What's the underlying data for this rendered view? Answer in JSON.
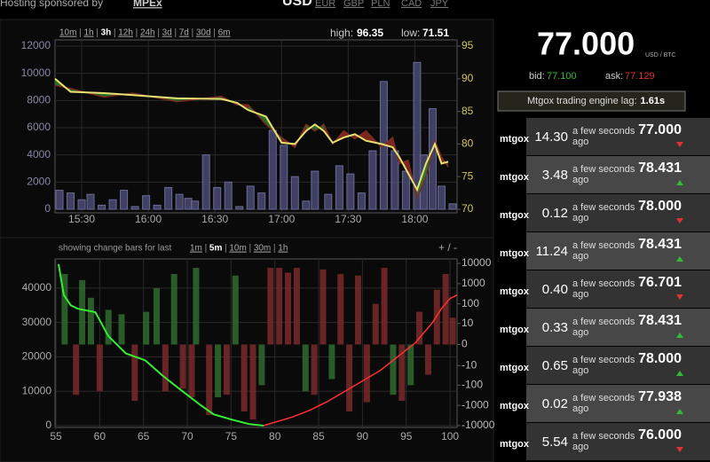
{
  "header": {
    "sponsor_text": "Hosting sponsored by",
    "sponsor": "MPEx",
    "currencies": [
      "USD",
      "EUR",
      "GBP",
      "PLN",
      "CAD",
      "JPY"
    ],
    "active_currency": 0
  },
  "chart_data": [
    {
      "type": "bar_line",
      "ranges": [
        "10m",
        "1h",
        "3h",
        "12h",
        "24h",
        "3d",
        "7d",
        "30d",
        "6m"
      ],
      "active_range": 2,
      "high_label": "high:",
      "high": 96.35,
      "low_label": "low:",
      "low": 71.51,
      "xlim": [
        18,
        199
      ],
      "xticks": [
        {
          "value": 30,
          "label": "15:30"
        },
        {
          "value": 60,
          "label": "16:00"
        },
        {
          "value": 90,
          "label": "16:30"
        },
        {
          "value": 120,
          "label": "17:00"
        },
        {
          "value": 150,
          "label": "17:30"
        },
        {
          "value": 180,
          "label": "18:00"
        }
      ],
      "ylim": [
        0,
        12000
      ],
      "yticks": [
        0,
        2000,
        4000,
        6000,
        8000,
        10000,
        12000
      ],
      "y2lim": [
        70,
        95
      ],
      "y2ticks": [
        70,
        75,
        80,
        85,
        90,
        95
      ],
      "grid": true,
      "bars": [
        {
          "color": "#4a4a72",
          "x": [
            20,
            25,
            30,
            34,
            39,
            44,
            49,
            54,
            59,
            64,
            69,
            74,
            78,
            81,
            86,
            91,
            96,
            101,
            106,
            111,
            116,
            121,
            126,
            131,
            135,
            141,
            146,
            151,
            156,
            161,
            166,
            171,
            176,
            181,
            184,
            188,
            192,
            197
          ],
          "values": [
            1400,
            1200,
            700,
            1100,
            300,
            700,
            1400,
            200,
            1000,
            300,
            1600,
            1100,
            800,
            600,
            4000,
            1600,
            2000,
            200,
            1700,
            1200,
            5800,
            4700,
            2400,
            600,
            2800,
            1100,
            3200,
            2600,
            1200,
            4300,
            9400,
            4300,
            2800,
            10800,
            4000,
            7400,
            1700,
            400
          ]
        }
      ],
      "series": [
        {
          "color": "#e8e070",
          "axis": "y2",
          "x": [
            18,
            25,
            40,
            53,
            73,
            93,
            100,
            105,
            113,
            120,
            126,
            131,
            135,
            139,
            143,
            148,
            153,
            158,
            165,
            170,
            173,
            177,
            181,
            185,
            189,
            192,
            195
          ],
          "values": [
            90,
            88,
            87.8,
            87.5,
            87,
            86.9,
            86.3,
            85.2,
            84.2,
            80.2,
            80,
            82,
            83,
            82,
            80.2,
            81,
            81.5,
            80.5,
            80,
            79.5,
            78,
            75.5,
            73,
            77,
            80,
            77,
            77.3
          ]
        },
        {
          "color": "#7a2a20",
          "axis": "y2",
          "x": [
            18,
            25,
            40,
            53,
            73,
            93,
            100,
            105,
            113,
            120,
            126,
            131,
            135,
            139,
            143,
            148,
            153,
            158,
            165,
            170,
            173,
            177,
            181,
            185,
            189,
            192,
            195
          ],
          "values": [
            89,
            88.5,
            87.2,
            87.8,
            86.5,
            87.3,
            86,
            86,
            83,
            81,
            79.5,
            83,
            82,
            83,
            80,
            82,
            80.8,
            82,
            79.5,
            81,
            77,
            77.5,
            71.8,
            75,
            80.5,
            78,
            76.5
          ]
        }
      ],
      "fill_up": "#2a7a2a",
      "fill_down": "#8a2a22"
    },
    {
      "type": "change_bars",
      "caption": "showing change bars for last",
      "ranges": [
        "1m",
        "5m",
        "10m",
        "30m",
        "1h"
      ],
      "active_range": 1,
      "zoom": "+ / -",
      "xlim": [
        55,
        100.8
      ],
      "xticks": [
        55,
        60,
        65,
        70,
        75,
        80,
        85,
        90,
        95,
        100
      ],
      "ylim": [
        0,
        47200
      ],
      "yticks": [
        0,
        10000,
        20000,
        30000,
        40000
      ],
      "y2scale": "symlog",
      "y2lim": [
        -10000,
        10000
      ],
      "y2ticks": [
        10000,
        1000,
        100,
        10,
        0,
        -10,
        -100,
        -1000,
        -10000
      ],
      "grid": true,
      "bars": [
        {
          "color": "#2f6b2f",
          "axis": "y2",
          "x": [
            56,
            58,
            59,
            61,
            62.5,
            65.3,
            66.5,
            68.5,
            71,
            73.5,
            75.5,
            78.5,
            83.5,
            86.5,
            93.5,
            95.5
          ],
          "values": [
            3000,
            1500,
            200,
            50,
            30,
            40,
            600,
            3000,
            6000,
            -400,
            2500,
            -100,
            -200,
            -50,
            -300,
            -100
          ]
        },
        {
          "color": "#7a2a2a",
          "axis": "y2",
          "x": [
            57.3,
            60,
            64,
            67.5,
            69.5,
            70.5,
            72.5,
            74.5,
            76.5,
            77.5,
            79.5,
            80.5,
            81.5,
            82.5,
            84.5,
            85.5,
            87.5,
            88.5,
            89.5,
            90.5,
            91.5,
            92.5,
            94.5,
            96.5,
            97.5,
            98.5,
            99.5,
            100.3
          ],
          "values": [
            -300,
            -200,
            -600,
            -200,
            -150,
            -400,
            -3000,
            -300,
            -2000,
            -5000,
            6000,
            6000,
            3500,
            6000,
            -300,
            5000,
            3000,
            -2000,
            2500,
            -700,
            100,
            6000,
            -600,
            40,
            -30,
            500,
            3000,
            20
          ]
        }
      ],
      "series": [
        {
          "color": "#33ee33",
          "x": [
            55.3,
            55.9,
            56.7,
            57.5,
            59.5,
            61,
            63,
            65.2,
            67.2,
            69.2,
            71.5,
            73,
            75,
            77,
            78.7
          ],
          "values": [
            47000,
            38000,
            35000,
            34000,
            33000,
            26000,
            21000,
            19000,
            14500,
            10500,
            6000,
            3300,
            1800,
            500,
            0
          ]
        },
        {
          "color": "#ff3030",
          "x": [
            78.7,
            80,
            82,
            84,
            86,
            88,
            90,
            92,
            94,
            96,
            98,
            99,
            100,
            100.8
          ],
          "values": [
            0,
            1000,
            2500,
            4500,
            7000,
            10000,
            13000,
            16000,
            20000,
            24000,
            30000,
            34000,
            37000,
            38000
          ]
        }
      ]
    }
  ],
  "ticker": {
    "price": "77.000",
    "unit": "USD / BTC",
    "bid_label": "bid:",
    "bid": "77.100",
    "ask_label": "ask:",
    "ask": "77.129",
    "lag_label": "Mtgox trading engine lag:",
    "lag": "1.61s"
  },
  "trade_colors": {
    "up": "#33bb33",
    "down": "#dd3333"
  },
  "trades": [
    {
      "exchange": "mtgox",
      "amount": "14.30",
      "time": "a few seconds ago",
      "price": "77.000",
      "direction": "down"
    },
    {
      "exchange": "mtgox",
      "amount": "3.48",
      "time": "a few seconds ago",
      "price": "78.431",
      "direction": "up"
    },
    {
      "exchange": "mtgox",
      "amount": "0.12",
      "time": "a few seconds ago",
      "price": "78.000",
      "direction": "down"
    },
    {
      "exchange": "mtgox",
      "amount": "11.24",
      "time": "a few seconds ago",
      "price": "78.431",
      "direction": "up"
    },
    {
      "exchange": "mtgox",
      "amount": "0.40",
      "time": "a few seconds ago",
      "price": "76.701",
      "direction": "down"
    },
    {
      "exchange": "mtgox",
      "amount": "0.33",
      "time": "a few seconds ago",
      "price": "78.431",
      "direction": "up"
    },
    {
      "exchange": "mtgox",
      "amount": "0.65",
      "time": "a few seconds ago",
      "price": "78.000",
      "direction": "up"
    },
    {
      "exchange": "mtgox",
      "amount": "0.02",
      "time": "a few seconds ago",
      "price": "77.938",
      "direction": "up"
    },
    {
      "exchange": "mtgox",
      "amount": "5.54",
      "time": "a few seconds ago",
      "price": "76.000",
      "direction": "down"
    }
  ]
}
